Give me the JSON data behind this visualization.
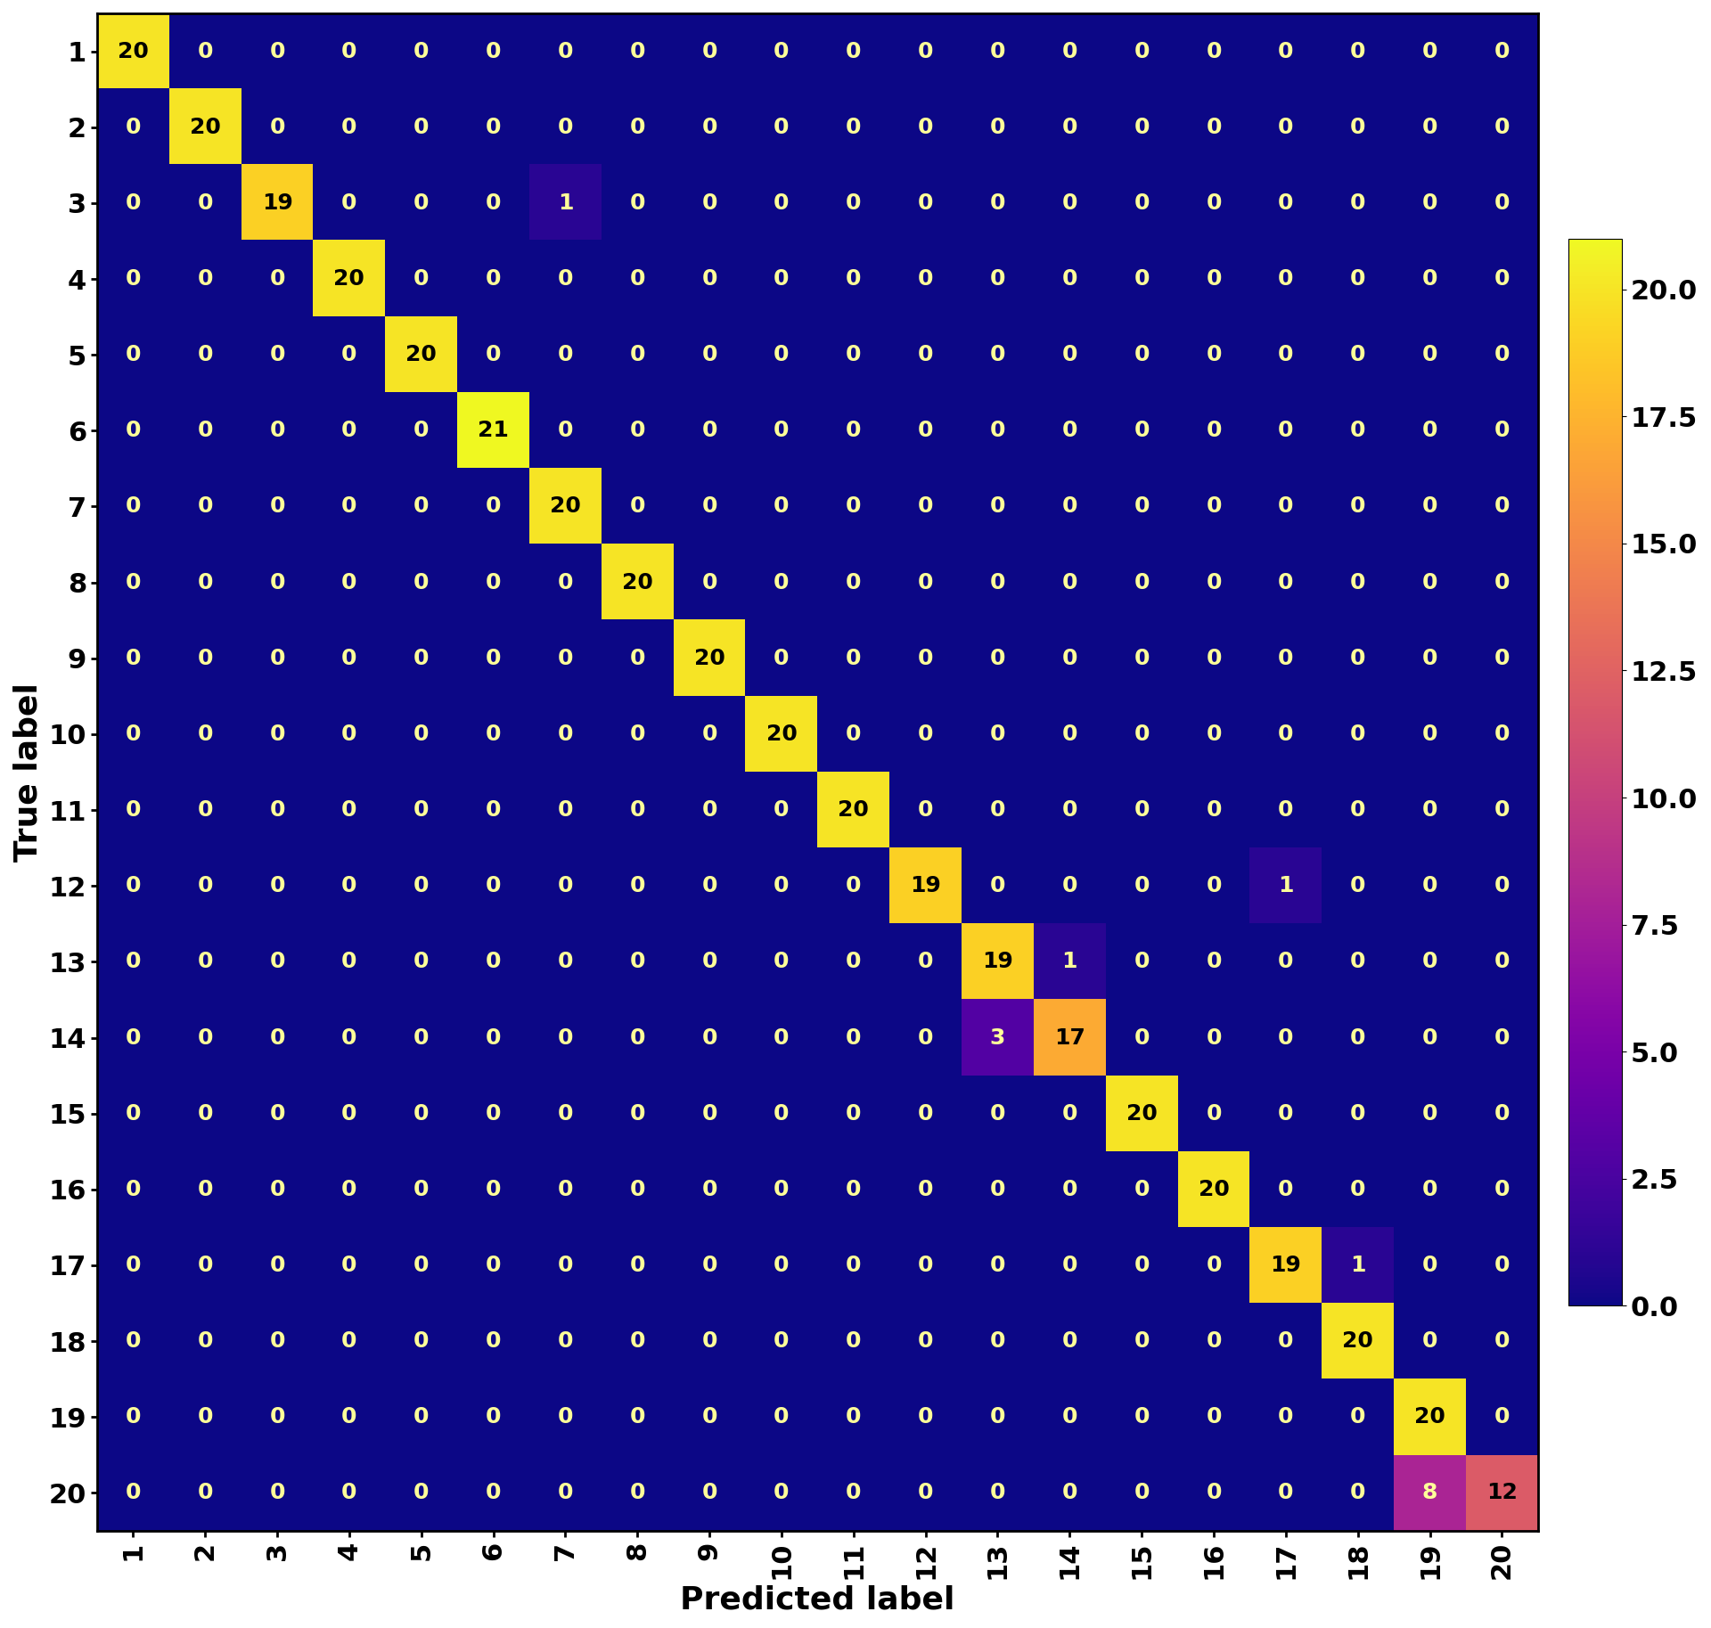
{
  "matrix": [
    [
      20,
      0,
      0,
      0,
      0,
      0,
      0,
      0,
      0,
      0,
      0,
      0,
      0,
      0,
      0,
      0,
      0,
      0,
      0,
      0
    ],
    [
      0,
      20,
      0,
      0,
      0,
      0,
      0,
      0,
      0,
      0,
      0,
      0,
      0,
      0,
      0,
      0,
      0,
      0,
      0,
      0
    ],
    [
      0,
      0,
      19,
      0,
      0,
      0,
      1,
      0,
      0,
      0,
      0,
      0,
      0,
      0,
      0,
      0,
      0,
      0,
      0,
      0
    ],
    [
      0,
      0,
      0,
      20,
      0,
      0,
      0,
      0,
      0,
      0,
      0,
      0,
      0,
      0,
      0,
      0,
      0,
      0,
      0,
      0
    ],
    [
      0,
      0,
      0,
      0,
      20,
      0,
      0,
      0,
      0,
      0,
      0,
      0,
      0,
      0,
      0,
      0,
      0,
      0,
      0,
      0
    ],
    [
      0,
      0,
      0,
      0,
      0,
      21,
      0,
      0,
      0,
      0,
      0,
      0,
      0,
      0,
      0,
      0,
      0,
      0,
      0,
      0
    ],
    [
      0,
      0,
      0,
      0,
      0,
      0,
      20,
      0,
      0,
      0,
      0,
      0,
      0,
      0,
      0,
      0,
      0,
      0,
      0,
      0
    ],
    [
      0,
      0,
      0,
      0,
      0,
      0,
      0,
      20,
      0,
      0,
      0,
      0,
      0,
      0,
      0,
      0,
      0,
      0,
      0,
      0
    ],
    [
      0,
      0,
      0,
      0,
      0,
      0,
      0,
      0,
      20,
      0,
      0,
      0,
      0,
      0,
      0,
      0,
      0,
      0,
      0,
      0
    ],
    [
      0,
      0,
      0,
      0,
      0,
      0,
      0,
      0,
      0,
      20,
      0,
      0,
      0,
      0,
      0,
      0,
      0,
      0,
      0,
      0
    ],
    [
      0,
      0,
      0,
      0,
      0,
      0,
      0,
      0,
      0,
      0,
      20,
      0,
      0,
      0,
      0,
      0,
      0,
      0,
      0,
      0
    ],
    [
      0,
      0,
      0,
      0,
      0,
      0,
      0,
      0,
      0,
      0,
      0,
      19,
      0,
      0,
      0,
      0,
      1,
      0,
      0,
      0
    ],
    [
      0,
      0,
      0,
      0,
      0,
      0,
      0,
      0,
      0,
      0,
      0,
      0,
      19,
      1,
      0,
      0,
      0,
      0,
      0,
      0
    ],
    [
      0,
      0,
      0,
      0,
      0,
      0,
      0,
      0,
      0,
      0,
      0,
      0,
      3,
      17,
      0,
      0,
      0,
      0,
      0,
      0
    ],
    [
      0,
      0,
      0,
      0,
      0,
      0,
      0,
      0,
      0,
      0,
      0,
      0,
      0,
      0,
      20,
      0,
      0,
      0,
      0,
      0
    ],
    [
      0,
      0,
      0,
      0,
      0,
      0,
      0,
      0,
      0,
      0,
      0,
      0,
      0,
      0,
      0,
      20,
      0,
      0,
      0,
      0
    ],
    [
      0,
      0,
      0,
      0,
      0,
      0,
      0,
      0,
      0,
      0,
      0,
      0,
      0,
      0,
      0,
      0,
      19,
      1,
      0,
      0
    ],
    [
      0,
      0,
      0,
      0,
      0,
      0,
      0,
      0,
      0,
      0,
      0,
      0,
      0,
      0,
      0,
      0,
      0,
      20,
      0,
      0
    ],
    [
      0,
      0,
      0,
      0,
      0,
      0,
      0,
      0,
      0,
      0,
      0,
      0,
      0,
      0,
      0,
      0,
      0,
      0,
      20,
      0
    ],
    [
      0,
      0,
      0,
      0,
      0,
      0,
      0,
      0,
      0,
      0,
      0,
      0,
      0,
      0,
      0,
      0,
      0,
      0,
      8,
      12
    ]
  ],
  "labels": [
    "1",
    "2",
    "3",
    "4",
    "5",
    "6",
    "7",
    "8",
    "9",
    "10",
    "11",
    "12",
    "13",
    "14",
    "15",
    "16",
    "17",
    "18",
    "19",
    "20"
  ],
  "xlabel": "Predicted label",
  "ylabel": "True label",
  "cmap": "plasma",
  "vmin": 0,
  "vmax": 21,
  "figsize": [
    19.2,
    18.27
  ],
  "dpi": 100,
  "annotation_fontsize": 18,
  "tick_fontsize": 22,
  "label_fontsize": 26,
  "cbar_fontsize": 22,
  "text_color_light": "#FFFF99",
  "text_color_dark": "#000000",
  "threshold": 12
}
